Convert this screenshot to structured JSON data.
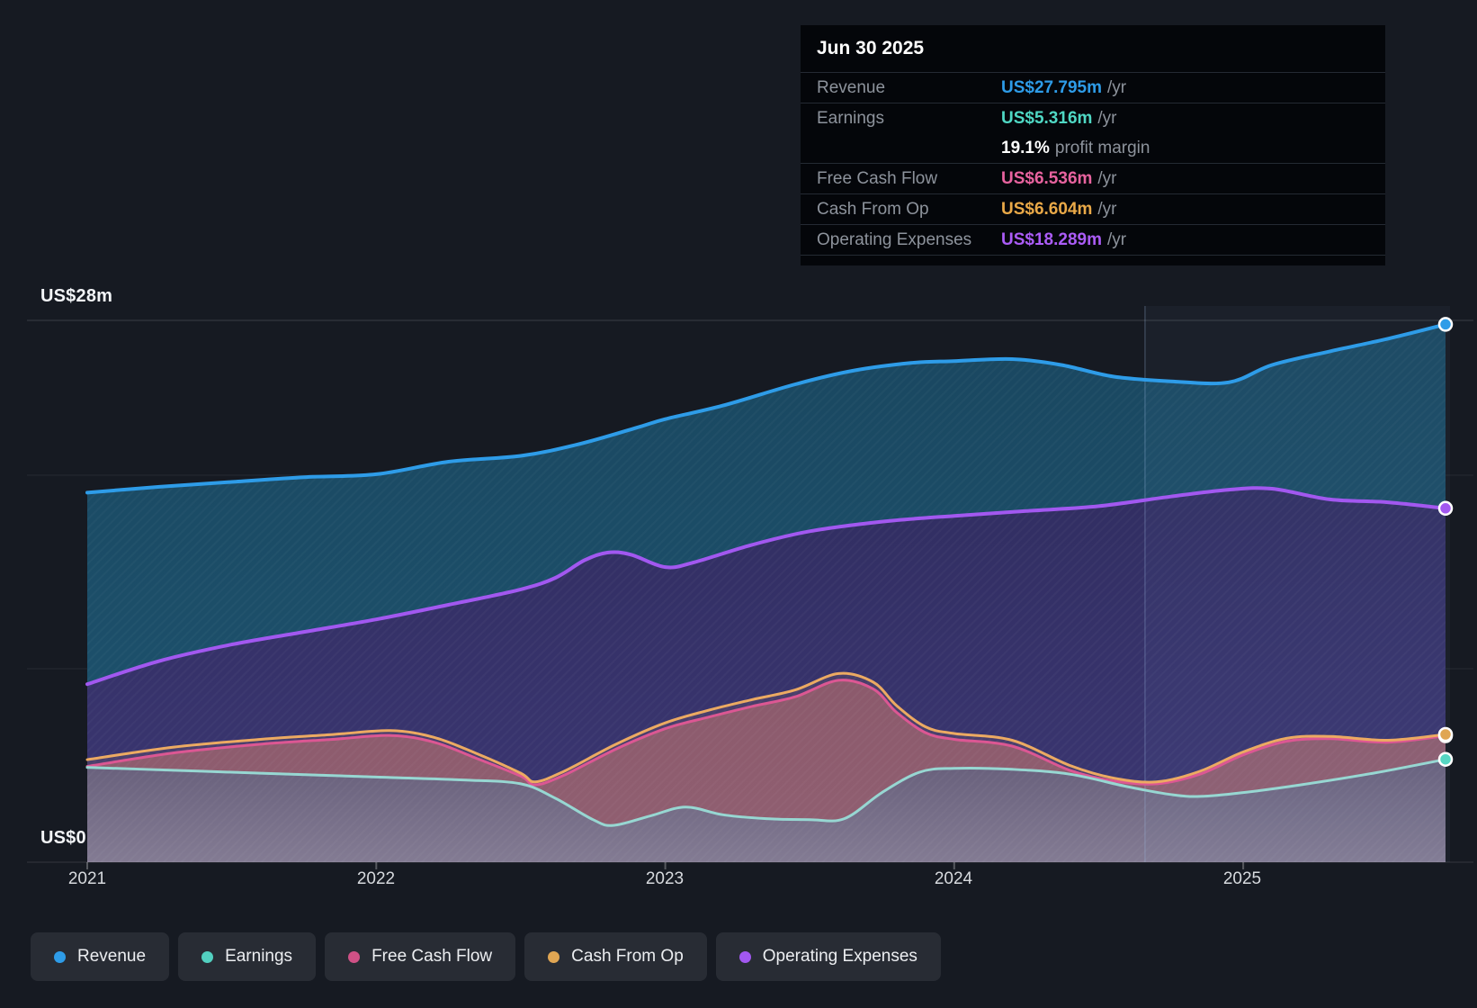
{
  "y_axis": {
    "top_label": "US$28m",
    "bottom_label": "US$0",
    "max": 28,
    "min": 0
  },
  "x_axis": {
    "ticks": [
      "2021",
      "2022",
      "2023",
      "2024",
      "2025"
    ]
  },
  "tooltip": {
    "title": "Jun 30 2025",
    "rows": [
      {
        "label": "Revenue",
        "value": "US$27.795m",
        "suffix": "/yr",
        "color": "#2e9ce8"
      },
      {
        "label": "Earnings",
        "value": "US$5.316m",
        "suffix": "/yr",
        "color": "#4fd8c4"
      },
      {
        "label": "Free Cash Flow",
        "value": "US$6.536m",
        "suffix": "/yr",
        "color": "#e8639f"
      },
      {
        "label": "Cash From Op",
        "value": "US$6.604m",
        "suffix": "/yr",
        "color": "#eaa948"
      },
      {
        "label": "Operating Expenses",
        "value": "US$18.289m",
        "suffix": "/yr",
        "color": "#ab5cf7"
      }
    ],
    "margin": {
      "value": "19.1%",
      "label": "profit margin"
    }
  },
  "legend": [
    {
      "label": "Revenue",
      "color": "#2e9ce8"
    },
    {
      "label": "Earnings",
      "color": "#52d0c0"
    },
    {
      "label": "Free Cash Flow",
      "color": "#cf5186"
    },
    {
      "label": "Cash From Op",
      "color": "#e0a653"
    },
    {
      "label": "Operating Expenses",
      "color": "#a258f0"
    }
  ],
  "chart_data": {
    "type": "area",
    "title": "Company financial history (US$m per year)",
    "xlabel": "",
    "ylabel": "US$m",
    "x_start": 2021.0,
    "x_end": 2025.7,
    "ylim": [
      0,
      28
    ],
    "grid_values": [
      28,
      20,
      10
    ],
    "hover_x": 2024.66,
    "x_ticks": [
      2021,
      2022,
      2023,
      2024,
      2025
    ],
    "series": [
      {
        "name": "Revenue",
        "line_color": "#2e9ce8",
        "dot_color": "#2e9ce8",
        "line_width": 4,
        "fill_top": "#1a4760",
        "fill_bottom": "#1d5470",
        "fill_opacity": 1,
        "points": [
          [
            2021,
            19.1
          ],
          [
            2021.25,
            19.4
          ],
          [
            2021.5,
            19.65
          ],
          [
            2021.75,
            19.9
          ],
          [
            2022,
            20.05
          ],
          [
            2022.25,
            20.7
          ],
          [
            2022.5,
            21.0
          ],
          [
            2022.7,
            21.6
          ],
          [
            2022.9,
            22.45
          ],
          [
            2023,
            22.9
          ],
          [
            2023.2,
            23.6
          ],
          [
            2023.45,
            24.7
          ],
          [
            2023.65,
            25.4
          ],
          [
            2023.85,
            25.8
          ],
          [
            2024,
            25.9
          ],
          [
            2024.2,
            26.0
          ],
          [
            2024.37,
            25.7
          ],
          [
            2024.55,
            25.1
          ],
          [
            2024.75,
            24.85
          ],
          [
            2024.95,
            24.8
          ],
          [
            2025.1,
            25.7
          ],
          [
            2025.3,
            26.4
          ],
          [
            2025.5,
            27.05
          ],
          [
            2025.7,
            27.795
          ]
        ]
      },
      {
        "name": "Operating Expenses",
        "line_color": "#a258f0",
        "dot_color": "#a258f0",
        "line_width": 4,
        "fill_top": "#312e62",
        "fill_bottom": "#3c3773",
        "fill_opacity": 1,
        "points": [
          [
            2021,
            9.2
          ],
          [
            2021.25,
            10.4
          ],
          [
            2021.5,
            11.25
          ],
          [
            2021.75,
            11.9
          ],
          [
            2022,
            12.55
          ],
          [
            2022.25,
            13.3
          ],
          [
            2022.5,
            14.1
          ],
          [
            2022.62,
            14.7
          ],
          [
            2022.72,
            15.6
          ],
          [
            2022.8,
            16.0
          ],
          [
            2022.88,
            15.9
          ],
          [
            2023,
            15.25
          ],
          [
            2023.1,
            15.5
          ],
          [
            2023.3,
            16.4
          ],
          [
            2023.5,
            17.1
          ],
          [
            2023.75,
            17.6
          ],
          [
            2024,
            17.9
          ],
          [
            2024.25,
            18.15
          ],
          [
            2024.5,
            18.4
          ],
          [
            2024.75,
            18.9
          ],
          [
            2024.95,
            19.25
          ],
          [
            2025.1,
            19.3
          ],
          [
            2025.3,
            18.75
          ],
          [
            2025.5,
            18.6
          ],
          [
            2025.7,
            18.289
          ]
        ]
      },
      {
        "name": "Free Cash Flow",
        "line_color": "#dc5793",
        "dot_color": "#dc5793",
        "line_width": 3,
        "fill_top": "#84536e",
        "fill_bottom": "#8a5a74",
        "fill_opacity": 0.96,
        "points": [
          [
            2021,
            4.95
          ],
          [
            2021.3,
            5.65
          ],
          [
            2021.6,
            6.1
          ],
          [
            2021.85,
            6.35
          ],
          [
            2022.05,
            6.55
          ],
          [
            2022.2,
            6.2
          ],
          [
            2022.35,
            5.35
          ],
          [
            2022.5,
            4.45
          ],
          [
            2022.55,
            4.0
          ],
          [
            2022.65,
            4.5
          ],
          [
            2022.83,
            5.85
          ],
          [
            2023,
            6.9
          ],
          [
            2023.15,
            7.5
          ],
          [
            2023.3,
            8.05
          ],
          [
            2023.45,
            8.55
          ],
          [
            2023.6,
            9.4
          ],
          [
            2023.72,
            8.95
          ],
          [
            2023.8,
            7.75
          ],
          [
            2023.9,
            6.7
          ],
          [
            2024,
            6.35
          ],
          [
            2024.2,
            6.0
          ],
          [
            2024.4,
            4.75
          ],
          [
            2024.55,
            4.2
          ],
          [
            2024.7,
            4.05
          ],
          [
            2024.85,
            4.55
          ],
          [
            2025,
            5.55
          ],
          [
            2025.15,
            6.25
          ],
          [
            2025.3,
            6.38
          ],
          [
            2025.5,
            6.2
          ],
          [
            2025.7,
            6.536
          ]
        ]
      },
      {
        "name": "Cash From Op",
        "line_color": "#ecaa62",
        "dot_color": "#e0a653",
        "line_width": 3,
        "fill_top": "#e8a05c",
        "fill_bottom": "#e8a05c",
        "fill_opacity": 0.1,
        "points": [
          [
            2021,
            5.3
          ],
          [
            2021.3,
            5.95
          ],
          [
            2021.6,
            6.35
          ],
          [
            2021.85,
            6.6
          ],
          [
            2022.05,
            6.8
          ],
          [
            2022.2,
            6.45
          ],
          [
            2022.35,
            5.6
          ],
          [
            2022.5,
            4.6
          ],
          [
            2022.55,
            4.15
          ],
          [
            2022.65,
            4.7
          ],
          [
            2022.83,
            6.1
          ],
          [
            2023,
            7.2
          ],
          [
            2023.15,
            7.85
          ],
          [
            2023.3,
            8.4
          ],
          [
            2023.45,
            8.9
          ],
          [
            2023.6,
            9.75
          ],
          [
            2023.72,
            9.3
          ],
          [
            2023.8,
            8.1
          ],
          [
            2023.9,
            7.0
          ],
          [
            2024,
            6.65
          ],
          [
            2024.2,
            6.3
          ],
          [
            2024.4,
            5.0
          ],
          [
            2024.55,
            4.35
          ],
          [
            2024.7,
            4.15
          ],
          [
            2024.85,
            4.7
          ],
          [
            2025,
            5.7
          ],
          [
            2025.15,
            6.4
          ],
          [
            2025.3,
            6.5
          ],
          [
            2025.5,
            6.3
          ],
          [
            2025.7,
            6.604
          ]
        ]
      },
      {
        "name": "Earnings",
        "line_color": "#97d7d2",
        "dot_color": "#56d6c3",
        "line_width": 3,
        "fill_top": "#675f7b",
        "fill_bottom": "#837b93",
        "fill_opacity": 1,
        "points": [
          [
            2021,
            4.9
          ],
          [
            2021.3,
            4.75
          ],
          [
            2021.6,
            4.6
          ],
          [
            2022,
            4.4
          ],
          [
            2022.3,
            4.25
          ],
          [
            2022.5,
            4.05
          ],
          [
            2022.62,
            3.3
          ],
          [
            2022.75,
            2.2
          ],
          [
            2022.82,
            1.9
          ],
          [
            2022.95,
            2.4
          ],
          [
            2023.07,
            2.85
          ],
          [
            2023.2,
            2.45
          ],
          [
            2023.35,
            2.25
          ],
          [
            2023.5,
            2.2
          ],
          [
            2023.62,
            2.25
          ],
          [
            2023.75,
            3.6
          ],
          [
            2023.88,
            4.65
          ],
          [
            2024,
            4.85
          ],
          [
            2024.2,
            4.8
          ],
          [
            2024.4,
            4.55
          ],
          [
            2024.6,
            3.9
          ],
          [
            2024.75,
            3.5
          ],
          [
            2024.85,
            3.4
          ],
          [
            2025,
            3.6
          ],
          [
            2025.2,
            4.0
          ],
          [
            2025.45,
            4.6
          ],
          [
            2025.7,
            5.316
          ]
        ]
      }
    ],
    "end_dots": [
      "Revenue",
      "Operating Expenses",
      "Free Cash Flow",
      "Cash From Op",
      "Earnings"
    ]
  }
}
